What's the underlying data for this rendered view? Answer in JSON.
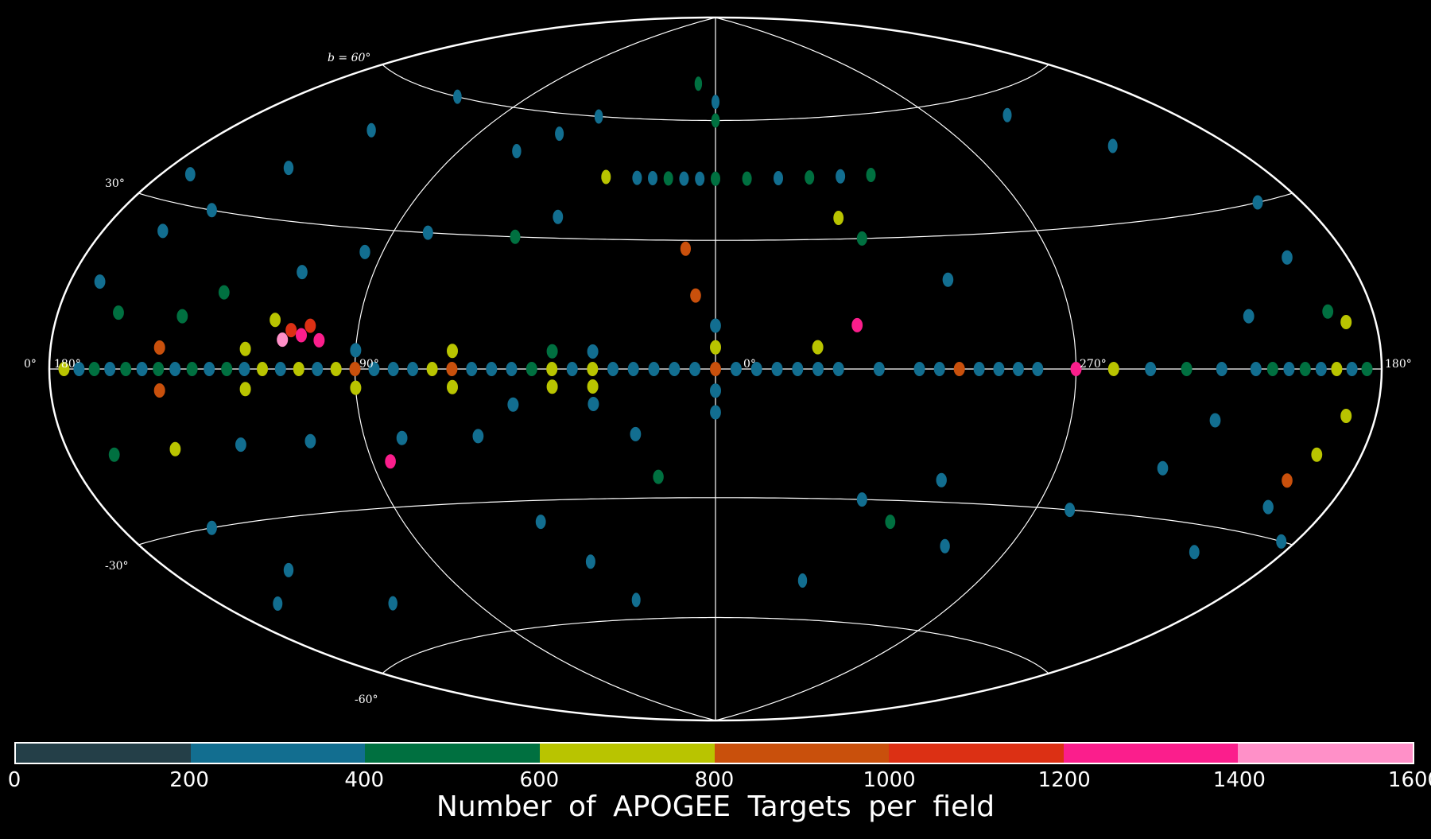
{
  "map": {
    "projection": "Aitoff/Hammer all-sky, galactic coordinates",
    "background": "#000000",
    "grid_color": "#ffffff",
    "longitude_labels": [
      {
        "lon": 180,
        "text": "0°"
      },
      {
        "lon": 180,
        "text": "180°"
      },
      {
        "lon": 90,
        "text": "90°"
      },
      {
        "lon": 0,
        "text": "0°"
      },
      {
        "lon": -90,
        "text": "270°"
      },
      {
        "lon": -180,
        "text": "180°"
      }
    ],
    "latitude_labels": [
      {
        "lat": 60,
        "text": "b = 60°"
      },
      {
        "lat": 30,
        "text": "30°"
      },
      {
        "lat": -30,
        "text": "-30°"
      },
      {
        "lat": -60,
        "text": "-60°"
      }
    ]
  },
  "colorbar": {
    "title": "Number of APOGEE Targets per field",
    "min": 0,
    "max": 1600,
    "ticks": [
      "0",
      "200",
      "400",
      "600",
      "800",
      "1000",
      "1200",
      "1400",
      "1600"
    ],
    "bins": [
      {
        "from": 0,
        "to": 200,
        "color": "#243f48"
      },
      {
        "from": 200,
        "to": 400,
        "color": "#126e90"
      },
      {
        "from": 400,
        "to": 600,
        "color": "#007040"
      },
      {
        "from": 600,
        "to": 800,
        "color": "#b9c400"
      },
      {
        "from": 800,
        "to": 1000,
        "color": "#c9500c"
      },
      {
        "from": 1000,
        "to": 1200,
        "color": "#dc3014"
      },
      {
        "from": 1200,
        "to": 1400,
        "color": "#fb1e8c"
      },
      {
        "from": 1400,
        "to": 1600,
        "color": "#ff90c8"
      }
    ]
  },
  "fields": [
    {
      "l": 0,
      "b": 0,
      "n": 800
    },
    {
      "l": 5,
      "b": 0,
      "n": 300
    },
    {
      "l": -5,
      "b": 0,
      "n": 300
    },
    {
      "l": 10,
      "b": 0,
      "n": 300
    },
    {
      "l": 15,
      "b": 0,
      "n": 300
    },
    {
      "l": 20,
      "b": 0,
      "n": 300
    },
    {
      "l": 25,
      "b": 0,
      "n": 300
    },
    {
      "l": 30,
      "b": 0,
      "n": 600
    },
    {
      "l": 35,
      "b": 0,
      "n": 300
    },
    {
      "l": 40,
      "b": 0,
      "n": 700
    },
    {
      "l": 45,
      "b": 0,
      "n": 500
    },
    {
      "l": 50,
      "b": 0,
      "n": 300
    },
    {
      "l": 55,
      "b": 0,
      "n": 300
    },
    {
      "l": 60,
      "b": 0,
      "n": 300
    },
    {
      "l": 65,
      "b": 0,
      "n": 900
    },
    {
      "l": 70,
      "b": 0,
      "n": 700
    },
    {
      "l": 75,
      "b": 0,
      "n": 300
    },
    {
      "l": 80,
      "b": 0,
      "n": 300
    },
    {
      "l": 85,
      "b": 0,
      "n": 300
    },
    {
      "l": 90,
      "b": 0,
      "n": 900
    },
    {
      "l": 95,
      "b": 0,
      "n": 700
    },
    {
      "l": 100,
      "b": 0,
      "n": 300
    },
    {
      "l": 105,
      "b": 0,
      "n": 700
    },
    {
      "l": 110,
      "b": 0,
      "n": 300
    },
    {
      "l": 115,
      "b": 0,
      "n": 700
    },
    {
      "l": 120,
      "b": 0,
      "n": 300
    },
    {
      "l": 125,
      "b": 0,
      "n": 500
    },
    {
      "l": 130,
      "b": 0,
      "n": 300
    },
    {
      "l": 135,
      "b": 0,
      "n": 500
    },
    {
      "l": 140,
      "b": 0,
      "n": 300
    },
    {
      "l": 145,
      "b": 0,
      "n": 500
    },
    {
      "l": 150,
      "b": 0,
      "n": 300
    },
    {
      "l": 155,
      "b": 0,
      "n": 500
    },
    {
      "l": 160,
      "b": 0,
      "n": 300
    },
    {
      "l": 165,
      "b": 0,
      "n": 500
    },
    {
      "l": 170,
      "b": 0,
      "n": 300
    },
    {
      "l": 175,
      "b": 0,
      "n": 700
    },
    {
      "l": 30,
      "b": 4,
      "n": 300
    },
    {
      "l": 30,
      "b": -4,
      "n": 700
    },
    {
      "l": 40,
      "b": 4,
      "n": 500
    },
    {
      "l": 40,
      "b": -4,
      "n": 700
    },
    {
      "l": 65,
      "b": 4,
      "n": 700
    },
    {
      "l": 65,
      "b": -4,
      "n": 700
    },
    {
      "l": 90,
      "b": 4,
      "n": 300
    },
    {
      "l": 90,
      "b": -4,
      "n": 700
    },
    {
      "l": 120,
      "b": 4,
      "n": 700
    },
    {
      "l": 120,
      "b": -4,
      "n": 700
    },
    {
      "l": 145,
      "b": 4,
      "n": 900
    },
    {
      "l": 145,
      "b": -4,
      "n": 900
    },
    {
      "l": 0,
      "b": 5,
      "n": 700
    },
    {
      "l": 0,
      "b": -5,
      "n": 300
    },
    {
      "l": 0,
      "b": 10,
      "n": 300
    },
    {
      "l": 0,
      "b": -10,
      "n": 300
    },
    {
      "l": -10,
      "b": 0,
      "n": 300
    },
    {
      "l": -15,
      "b": 0,
      "n": 300
    },
    {
      "l": -20,
      "b": 0,
      "n": 300
    },
    {
      "l": -25,
      "b": 0,
      "n": 300
    },
    {
      "l": -30,
      "b": 0,
      "n": 300
    },
    {
      "l": -40,
      "b": 0,
      "n": 300
    },
    {
      "l": -50,
      "b": 0,
      "n": 300
    },
    {
      "l": -55,
      "b": 0,
      "n": 300
    },
    {
      "l": -60,
      "b": 0,
      "n": 900
    },
    {
      "l": -65,
      "b": 0,
      "n": 300
    },
    {
      "l": -70,
      "b": 0,
      "n": 300
    },
    {
      "l": -75,
      "b": 0,
      "n": 300
    },
    {
      "l": -80,
      "b": 0,
      "n": 300
    },
    {
      "l": -90,
      "b": 0,
      "n": 1300
    },
    {
      "l": -100,
      "b": 0,
      "n": 700
    },
    {
      "l": -110,
      "b": 0,
      "n": 300
    },
    {
      "l": -120,
      "b": 0,
      "n": 500
    },
    {
      "l": -130,
      "b": 0,
      "n": 300
    },
    {
      "l": -140,
      "b": 0,
      "n": 300
    },
    {
      "l": -145,
      "b": 0,
      "n": 500
    },
    {
      "l": -150,
      "b": 0,
      "n": 300
    },
    {
      "l": -155,
      "b": 0,
      "n": 500
    },
    {
      "l": -160,
      "b": 0,
      "n": 300
    },
    {
      "l": -165,
      "b": 0,
      "n": 700
    },
    {
      "l": -170,
      "b": 0,
      "n": 300
    },
    {
      "l": -175,
      "b": 0,
      "n": 500
    },
    {
      "l": 108,
      "b": 8,
      "n": 1000
    },
    {
      "l": 103,
      "b": 9,
      "n": 1100
    },
    {
      "l": 113,
      "b": 10,
      "n": 700
    },
    {
      "l": 105,
      "b": 7,
      "n": 1300
    },
    {
      "l": 110,
      "b": 6,
      "n": 1400
    },
    {
      "l": 100,
      "b": 6,
      "n": 1200
    },
    {
      "l": 5,
      "b": 17,
      "n": 900
    },
    {
      "l": 8,
      "b": 28,
      "n": 900
    },
    {
      "l": -35,
      "b": 10,
      "n": 1300
    },
    {
      "l": 85,
      "b": -20,
      "n": 1300
    },
    {
      "l": -25,
      "b": 5,
      "n": 700
    },
    {
      "l": 0,
      "b": 45,
      "n": 500
    },
    {
      "l": 5,
      "b": 45,
      "n": 300
    },
    {
      "l": 10,
      "b": 45,
      "n": 300
    },
    {
      "l": 15,
      "b": 45,
      "n": 500
    },
    {
      "l": 20,
      "b": 45,
      "n": 300
    },
    {
      "l": 25,
      "b": 45,
      "n": 300
    },
    {
      "l": 35,
      "b": 45,
      "n": 700
    },
    {
      "l": -10,
      "b": 45,
      "n": 500
    },
    {
      "l": -20,
      "b": 45,
      "n": 300
    },
    {
      "l": -30,
      "b": 45,
      "n": 500
    },
    {
      "l": -40,
      "b": 45,
      "n": 300
    },
    {
      "l": -50,
      "b": 45,
      "n": 500
    },
    {
      "l": 0,
      "b": 60,
      "n": 500
    },
    {
      "l": 0,
      "b": 65,
      "n": 300
    },
    {
      "l": 10,
      "b": 70,
      "n": 500
    },
    {
      "l": 50,
      "b": 60,
      "n": 300
    },
    {
      "l": 60,
      "b": 55,
      "n": 300
    },
    {
      "l": 70,
      "b": 50,
      "n": 300
    },
    {
      "l": 45,
      "b": 35,
      "n": 300
    },
    {
      "l": 55,
      "b": 30,
      "n": 500
    },
    {
      "l": -35,
      "b": 35,
      "n": 700
    },
    {
      "l": -60,
      "b": 20,
      "n": 300
    },
    {
      "l": -40,
      "b": 30,
      "n": 500
    },
    {
      "l": 150,
      "b": 30,
      "n": 300
    },
    {
      "l": 160,
      "b": 25,
      "n": 300
    },
    {
      "l": 140,
      "b": 40,
      "n": 300
    },
    {
      "l": 130,
      "b": 50,
      "n": 300
    },
    {
      "l": 170,
      "b": 35,
      "n": 300
    },
    {
      "l": 120,
      "b": 60,
      "n": 300
    },
    {
      "l": 150,
      "b": -30,
      "n": 300
    },
    {
      "l": 140,
      "b": -40,
      "n": 300
    },
    {
      "l": 120,
      "b": -50,
      "n": 300
    },
    {
      "l": 160,
      "b": -45,
      "n": 300
    },
    {
      "l": -150,
      "b": -35,
      "n": 300
    },
    {
      "l": -160,
      "b": 20,
      "n": 300
    },
    {
      "l": -165,
      "b": 30,
      "n": 300
    },
    {
      "l": -140,
      "b": 45,
      "n": 300
    },
    {
      "l": -120,
      "b": 55,
      "n": 300
    },
    {
      "l": 50,
      "b": -35,
      "n": 300
    },
    {
      "l": 40,
      "b": -45,
      "n": 300
    },
    {
      "l": 30,
      "b": -55,
      "n": 300
    },
    {
      "l": -40,
      "b": -30,
      "n": 300
    },
    {
      "l": -50,
      "b": -35,
      "n": 500
    },
    {
      "l": -60,
      "b": -25,
      "n": 300
    },
    {
      "l": -30,
      "b": -50,
      "n": 300
    },
    {
      "l": -70,
      "b": -40,
      "n": 300
    },
    {
      "l": -100,
      "b": -30,
      "n": 300
    },
    {
      "l": 80,
      "b": 30,
      "n": 300
    },
    {
      "l": 95,
      "b": 25,
      "n": 300
    },
    {
      "l": 110,
      "b": 20,
      "n": 300
    },
    {
      "l": 130,
      "b": 15,
      "n": 500
    },
    {
      "l": 140,
      "b": 10,
      "n": 500
    },
    {
      "l": 160,
      "b": 10,
      "n": 500
    },
    {
      "l": 170,
      "b": 15,
      "n": 300
    },
    {
      "l": 165,
      "b": -15,
      "n": 500
    },
    {
      "l": 145,
      "b": -15,
      "n": 700
    },
    {
      "l": 125,
      "b": -15,
      "n": 300
    },
    {
      "l": 105,
      "b": -15,
      "n": 300
    },
    {
      "l": 80,
      "b": -15,
      "n": 300
    },
    {
      "l": 60,
      "b": -15,
      "n": 300
    },
    {
      "l": 20,
      "b": -15,
      "n": 300
    },
    {
      "l": 15,
      "b": -25,
      "n": 500
    },
    {
      "l": 30,
      "b": -8,
      "n": 300
    },
    {
      "l": 50,
      "b": -8,
      "n": 300
    },
    {
      "l": -165,
      "b": 10,
      "n": 500
    },
    {
      "l": -170,
      "b": 8,
      "n": 700
    },
    {
      "l": -170,
      "b": -8,
      "n": 700
    },
    {
      "l": -165,
      "b": -15,
      "n": 700
    },
    {
      "l": -160,
      "b": -25,
      "n": 300
    },
    {
      "l": -175,
      "b": -30,
      "n": 300
    },
    {
      "l": -140,
      "b": 10,
      "n": 300
    },
    {
      "l": -130,
      "b": -10,
      "n": 300
    },
    {
      "l": -120,
      "b": -20,
      "n": 300
    },
    {
      "l": -160,
      "b": -20,
      "n": 900
    }
  ]
}
